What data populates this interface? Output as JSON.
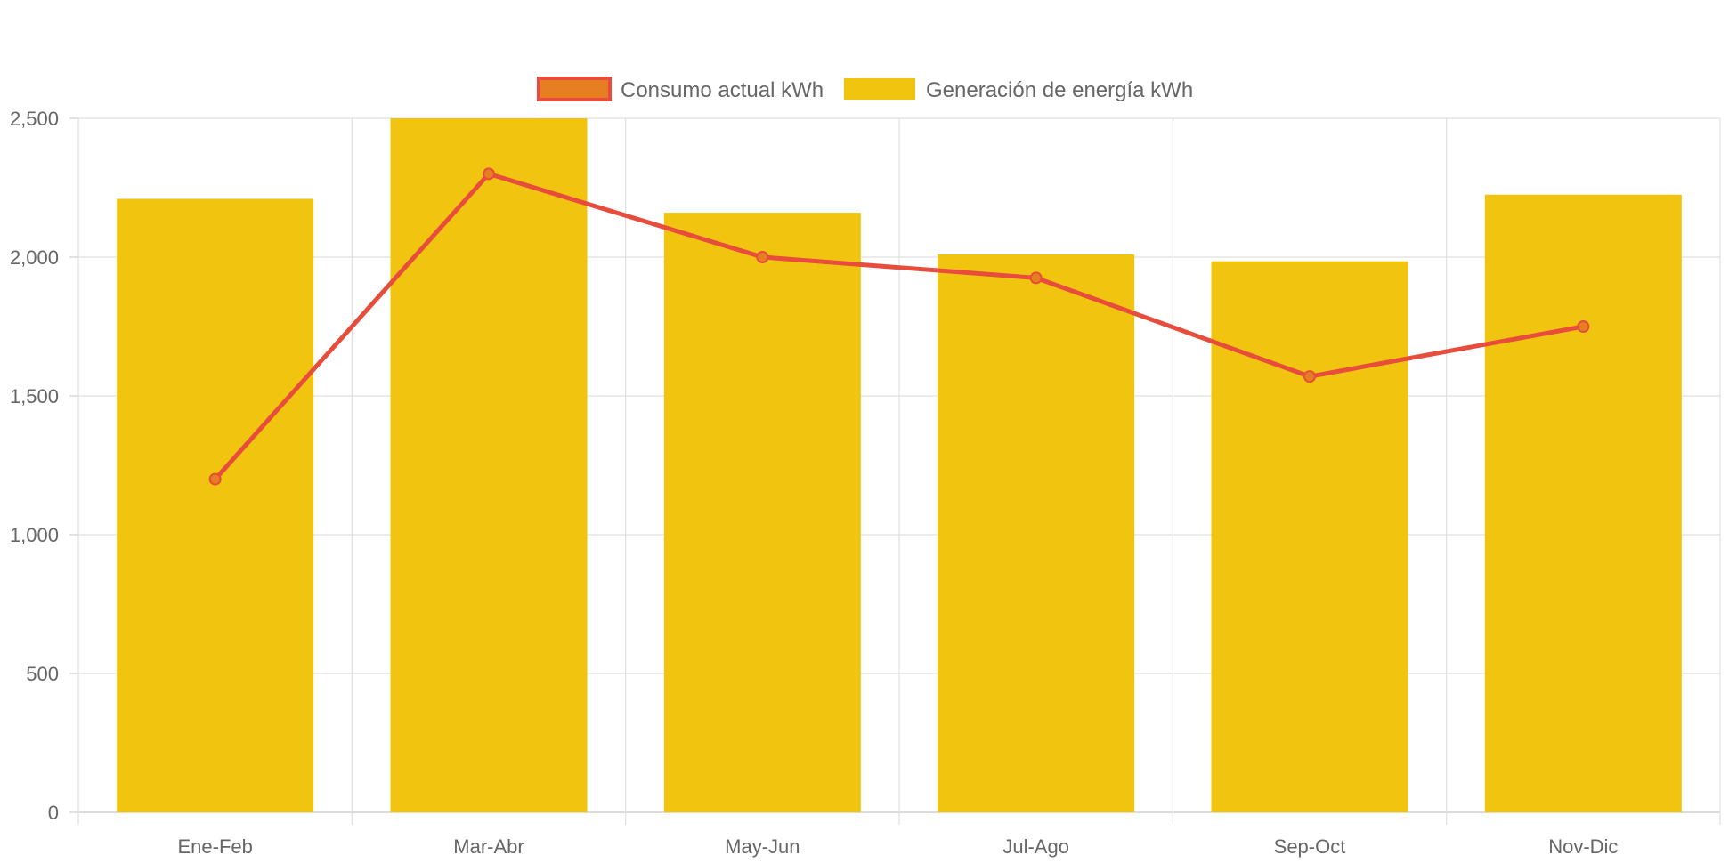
{
  "chart_data": {
    "type": "bar",
    "title": "",
    "xlabel": "",
    "ylabel": "",
    "categories": [
      "Ene-Feb",
      "Mar-Abr",
      "May-Jun",
      "Jul-Ago",
      "Sep-Oct",
      "Nov-Dic"
    ],
    "ylim": [
      0,
      2500
    ],
    "yticks": [
      0,
      500,
      1000,
      1500,
      2000,
      2500
    ],
    "ytick_labels": [
      "0",
      "500",
      "1,000",
      "1,500",
      "2,000",
      "2,500"
    ],
    "grid": true,
    "legend_position": "top-center",
    "series": [
      {
        "name": "Consumo actual kWh",
        "type": "line",
        "color": "#e74c3c",
        "point_fill": "#e67e22",
        "values": [
          1200,
          2300,
          2000,
          1925,
          1570,
          1750
        ]
      },
      {
        "name": "Generación de energía kWh",
        "type": "bar",
        "color": "#f1c40f",
        "values": [
          2210,
          2500,
          2160,
          2010,
          1985,
          2225
        ]
      }
    ]
  }
}
